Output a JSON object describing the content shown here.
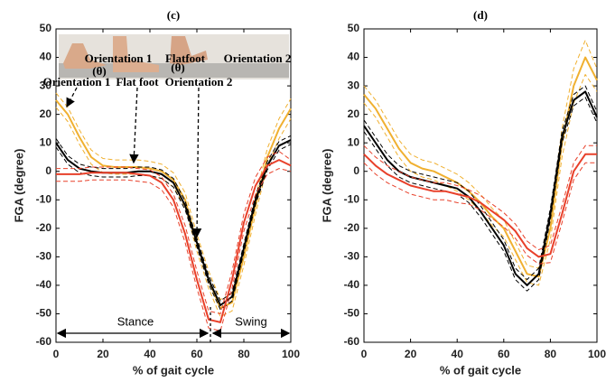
{
  "chart_data": [
    {
      "type": "line",
      "title": "(c)",
      "xlabel": "% of gait cycle",
      "ylabel": "FGA (degree)",
      "x": [
        0,
        5,
        10,
        15,
        20,
        25,
        30,
        35,
        40,
        45,
        50,
        55,
        60,
        65,
        70,
        75,
        80,
        85,
        90,
        95,
        100
      ],
      "xlim": [
        0,
        100
      ],
      "ylim": [
        -60,
        50
      ],
      "xticks": [
        0,
        20,
        40,
        60,
        80,
        100
      ],
      "yticks": [
        -60,
        -50,
        -40,
        -30,
        -20,
        -10,
        0,
        10,
        20,
        30,
        40,
        50
      ],
      "series": [
        {
          "color": "#f0b030",
          "values": [
            25,
            20,
            12,
            5,
            2,
            1.5,
            1.5,
            1.5,
            1,
            0,
            -3,
            -10,
            -25,
            -38,
            -48,
            -46,
            -30,
            -12,
            5,
            15,
            22
          ],
          "upper": [
            27.5,
            22.5,
            14.5,
            7.5,
            4.5,
            4,
            4,
            4,
            3.5,
            2.5,
            -0.5,
            -7.5,
            -22,
            -35,
            -45,
            -43,
            -27,
            -9,
            8,
            18.5,
            25.5
          ],
          "lower": [
            22.5,
            17.5,
            9.5,
            2.5,
            -0.5,
            -1,
            -1,
            -1,
            -1.5,
            -2.5,
            -5.5,
            -12.5,
            -28,
            -41,
            -51,
            -49,
            -33,
            -15,
            2,
            11.5,
            18.5
          ]
        },
        {
          "color": "#000000",
          "values": [
            10,
            4,
            1,
            0,
            -0.5,
            -0.5,
            -0.5,
            0,
            0,
            -1,
            -4,
            -12,
            -25,
            -38,
            -47,
            -44,
            -27,
            -10,
            2,
            9,
            11
          ],
          "upper": [
            11.5,
            5.5,
            2.5,
            1.5,
            1,
            1,
            1,
            1.5,
            1.5,
            0.5,
            -2.5,
            -10.5,
            -23.5,
            -36.5,
            -45.5,
            -42.5,
            -25.5,
            -8.5,
            3.5,
            10.5,
            12.5
          ],
          "lower": [
            8.5,
            2.5,
            -0.5,
            -1.5,
            -2,
            -2,
            -2,
            -1.5,
            -1.5,
            -2.5,
            -5.5,
            -13.5,
            -26.5,
            -39.5,
            -48.5,
            -45.5,
            -28.5,
            -11.5,
            0.5,
            7.5,
            9.5
          ]
        },
        {
          "color": "#e8402a",
          "values": [
            -1,
            -1,
            -1,
            -0.5,
            -0.5,
            -0.5,
            -0.5,
            -1,
            -1.5,
            -4,
            -10,
            -22,
            -38,
            -52,
            -53,
            -38,
            -18,
            -5,
            2,
            4,
            2
          ],
          "upper": [
            1,
            1,
            1,
            1.5,
            1.5,
            1.5,
            1.5,
            1,
            0.5,
            -2,
            -8,
            -19,
            -35,
            -49,
            -50,
            -35,
            -15,
            -2,
            5,
            7,
            4
          ],
          "lower": [
            -3.5,
            -3.5,
            -3.5,
            -3,
            -3,
            -3,
            -3,
            -3.5,
            -4,
            -6.5,
            -12.5,
            -25,
            -41,
            -55,
            -56,
            -41,
            -21,
            -8,
            -1,
            1,
            0
          ]
        }
      ],
      "annotations": [
        "Orientation 1",
        "Flatfoot",
        "Orientation 2",
        "Orientation 1",
        "Flat foot",
        "Orientation 2",
        "Stance",
        "Swing",
        "(θ)",
        "(θ)"
      ]
    },
    {
      "type": "line",
      "title": "(d)",
      "xlabel": "% of gait cycle",
      "ylabel": "FGA (degree)",
      "x": [
        0,
        5,
        10,
        15,
        20,
        25,
        30,
        35,
        40,
        45,
        50,
        55,
        60,
        65,
        70,
        75,
        80,
        85,
        90,
        95,
        100
      ],
      "xlim": [
        0,
        100
      ],
      "ylim": [
        -60,
        50
      ],
      "xticks": [
        0,
        20,
        40,
        60,
        80,
        100
      ],
      "yticks": [
        -60,
        -50,
        -40,
        -30,
        -20,
        -10,
        0,
        10,
        20,
        30,
        40,
        50
      ],
      "series": [
        {
          "color": "#f0b030",
          "values": [
            27,
            22,
            15,
            8,
            3,
            1,
            0,
            -2,
            -4,
            -7,
            -11,
            -16,
            -20,
            -28,
            -36,
            -37,
            -20,
            10,
            30,
            40,
            32
          ],
          "upper": [
            30,
            25,
            18,
            11,
            6,
            4,
            3,
            1,
            -1,
            -4,
            -8,
            -13,
            -17,
            -25,
            -33,
            -34,
            -16,
            15,
            36,
            46,
            36
          ],
          "lower": [
            24,
            19,
            12,
            5,
            0,
            -2,
            -3,
            -5,
            -7,
            -10,
            -14,
            -19,
            -23,
            -31,
            -39,
            -40,
            -24,
            5,
            24,
            34,
            28
          ]
        },
        {
          "color": "#000000",
          "values": [
            16,
            10,
            4,
            0,
            -2,
            -3,
            -4,
            -5,
            -6,
            -9,
            -14,
            -20,
            -26,
            -36,
            -40,
            -36,
            -15,
            12,
            25,
            28,
            19
          ],
          "upper": [
            18,
            12,
            6,
            2,
            0,
            -1,
            -2,
            -3,
            -4,
            -7,
            -12,
            -18,
            -24,
            -34,
            -38,
            -34,
            -13,
            14,
            27,
            30,
            21
          ],
          "lower": [
            14,
            8,
            2,
            -2,
            -4,
            -5,
            -6,
            -7,
            -8,
            -11,
            -16,
            -22,
            -28,
            -38,
            -42,
            -38,
            -17,
            10,
            23,
            26,
            17
          ]
        },
        {
          "color": "#e8402a",
          "values": [
            6,
            2,
            -1,
            -3,
            -5,
            -6,
            -7,
            -7,
            -8,
            -9,
            -11,
            -14,
            -17,
            -21,
            -27,
            -30,
            -29,
            -15,
            0,
            6,
            6
          ],
          "upper": [
            9,
            5,
            2,
            0,
            -2,
            -3,
            -4,
            -4,
            -5,
            -6.5,
            -8.5,
            -11.5,
            -14.5,
            -18.5,
            -24.5,
            -27.5,
            -26,
            -12,
            3,
            9,
            9
          ],
          "lower": [
            3,
            -1,
            -4,
            -6,
            -8,
            -9,
            -10,
            -10,
            -11,
            -11.5,
            -13.5,
            -16.5,
            -19.5,
            -23.5,
            -29.5,
            -32.5,
            -32,
            -18,
            -3,
            3,
            3
          ]
        }
      ]
    }
  ]
}
